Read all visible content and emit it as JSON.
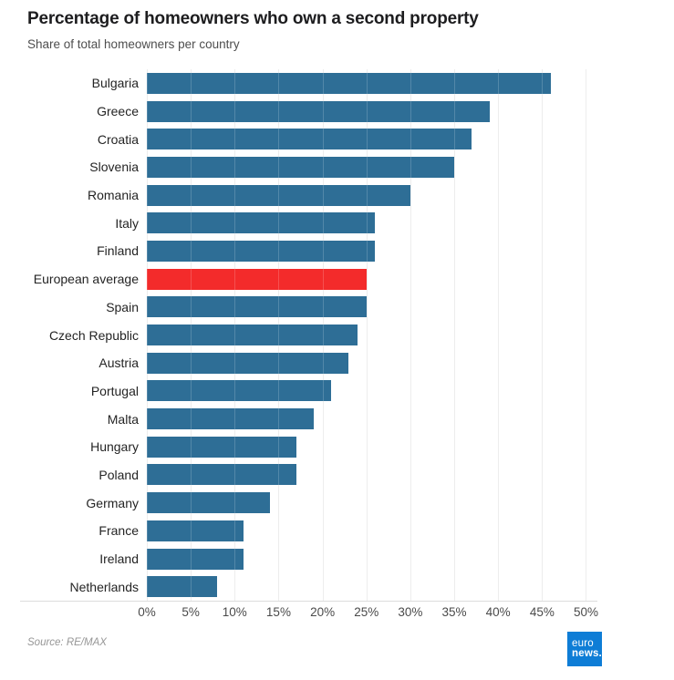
{
  "header": {
    "title": "Percentage of homeowners who own a second property",
    "subtitle": "Share of total homeowners per country"
  },
  "chart_data": {
    "type": "bar",
    "orientation": "horizontal",
    "title": "Percentage of homeowners who own a second property",
    "subtitle": "Share of total homeowners per country",
    "categories": [
      "Bulgaria",
      "Greece",
      "Croatia",
      "Slovenia",
      "Romania",
      "Italy",
      "Finland",
      "European average",
      "Spain",
      "Czech Republic",
      "Austria",
      "Portugal",
      "Malta",
      "Hungary",
      "Poland",
      "Germany",
      "France",
      "Ireland",
      "Netherlands"
    ],
    "values": [
      46,
      39,
      37,
      35,
      30,
      26,
      26,
      25,
      25,
      24,
      23,
      21,
      19,
      17,
      17,
      14,
      11,
      11,
      8
    ],
    "unit": "%",
    "highlight_category": "European average",
    "bar_color": "#2e6e96",
    "highlight_color": "#f32b2b",
    "xlim": [
      0,
      51.3
    ],
    "x_ticks": [
      0,
      5,
      10,
      15,
      20,
      25,
      30,
      35,
      40,
      45,
      50
    ],
    "tick_suffix": "%",
    "grid": true,
    "legend": false,
    "xlabel": "",
    "ylabel": ""
  },
  "footer": {
    "source": "Source: RE/MAX"
  },
  "logo": {
    "line1": "euro",
    "line2": "news.",
    "bg_color": "#0e7dd6"
  }
}
